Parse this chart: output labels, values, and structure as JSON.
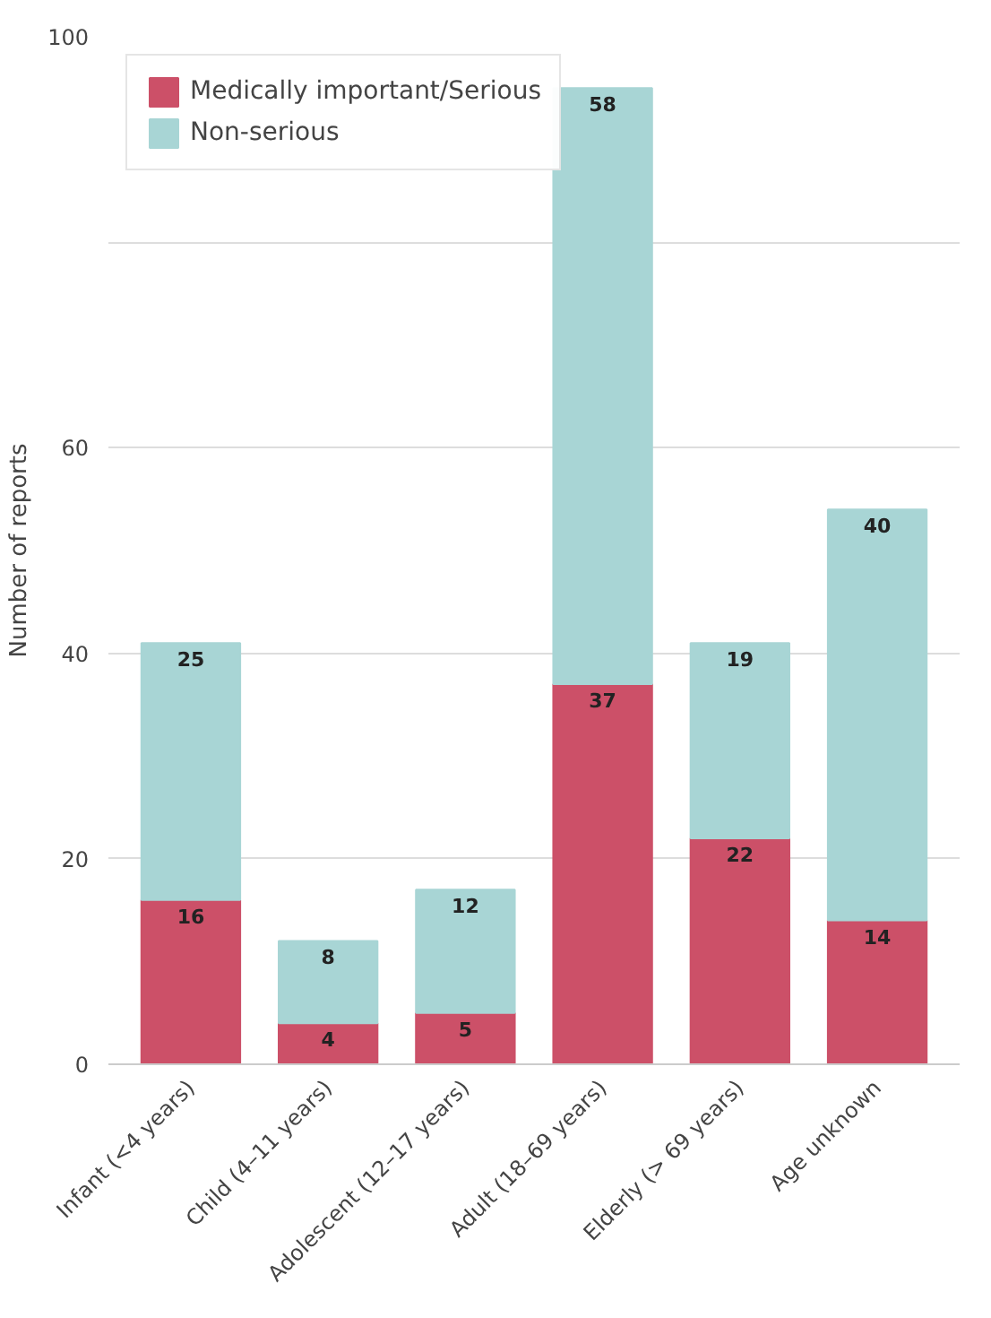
{
  "chart_data": {
    "type": "bar",
    "stacked": true,
    "ylabel": "Number of reports",
    "categories": [
      "Infant (<4 years)",
      "Child (4–11 years)",
      "Adolescent (12–17 years)",
      "Adult (18–69 years)",
      "Elderly (> 69 years)",
      "Age unknown"
    ],
    "series": [
      {
        "name": "Medically important/Serious",
        "color": "#cc5068",
        "values": [
          16,
          4,
          5,
          37,
          22,
          14
        ]
      },
      {
        "name": "Non-serious",
        "color": "#a8d5d5",
        "values": [
          25,
          8,
          12,
          58,
          19,
          40
        ]
      }
    ],
    "ylim": [
      0,
      100
    ],
    "yticks": [
      0,
      20,
      40,
      60,
      {
        "value": 80,
        "label": null
      },
      100
    ],
    "grid": "y",
    "legend": "top left",
    "data_labels": true
  }
}
